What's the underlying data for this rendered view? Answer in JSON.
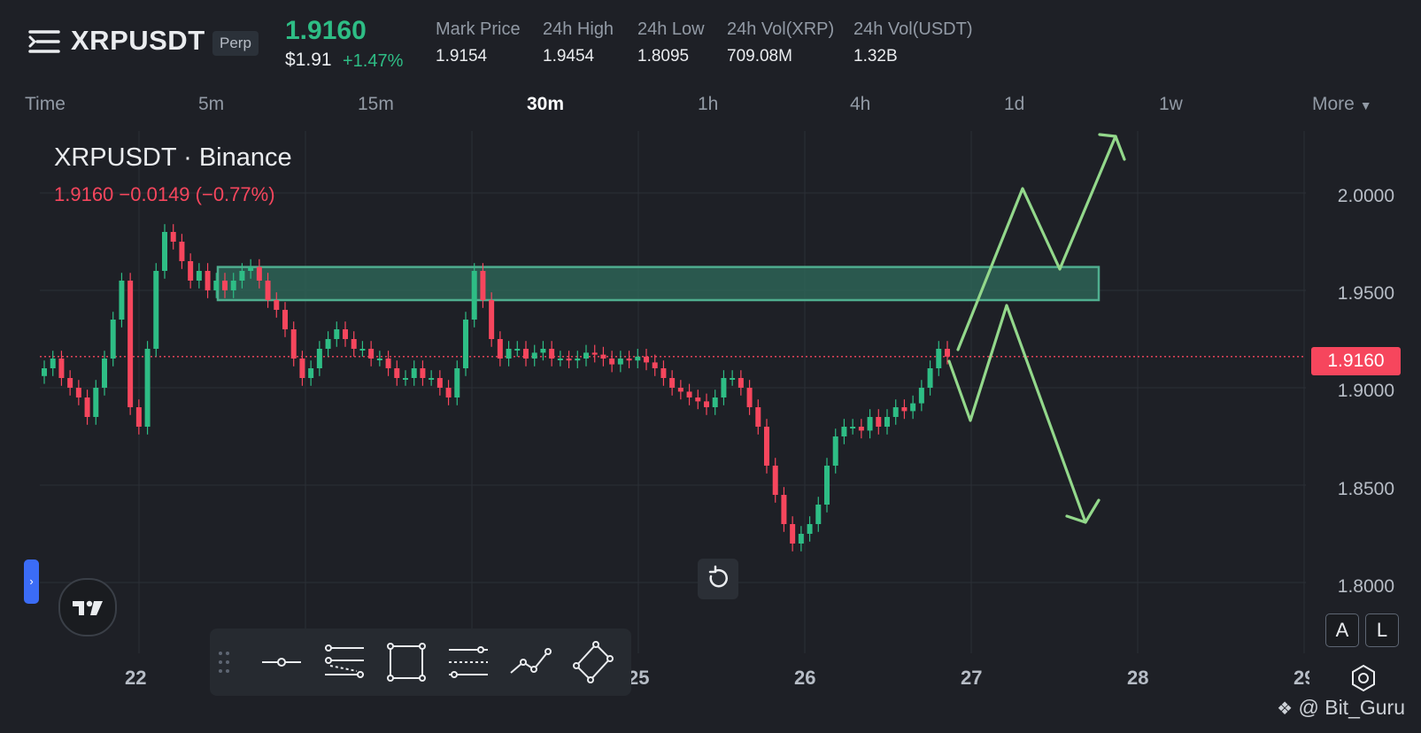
{
  "header": {
    "symbol": "XRPUSDT",
    "badge": "Perp",
    "last_price": "1.9160",
    "usd_price": "$1.91",
    "change_pct": "+1.47%",
    "stats": [
      {
        "label": "Mark Price",
        "value": "1.9154"
      },
      {
        "label": "24h High",
        "value": "1.9454"
      },
      {
        "label": "24h Low",
        "value": "1.8095"
      },
      {
        "label": "24h Vol(XRP)",
        "value": "709.08M"
      },
      {
        "label": "24h Vol(USDT)",
        "value": "1.32B"
      }
    ]
  },
  "timeframes": {
    "items": [
      "Time",
      "5m",
      "15m",
      "30m",
      "1h",
      "4h",
      "1d",
      "1w",
      "More"
    ],
    "active": "30m"
  },
  "chart": {
    "title": "XRPUSDT · Binance",
    "ohlc": "1.9160  −0.0149 (−0.77%)",
    "current_price_tag": "1.9160",
    "colors": {
      "up": "#2ebd85",
      "down": "#f6465d",
      "zone": "#2f6b5c",
      "arrows": "#93d88b"
    }
  },
  "chart_data": {
    "type": "candlestick",
    "title": "XRPUSDT · Binance",
    "y_ticks": [
      "2.0000",
      "1.9500",
      "1.9000",
      "1.8500",
      "1.8000"
    ],
    "x_ticks": [
      "22",
      "25",
      "26",
      "27",
      "28",
      "29"
    ],
    "ylim": [
      1.77,
      2.05
    ],
    "current_price": 1.916,
    "zone": {
      "low": 1.945,
      "high": 1.962
    },
    "series_close": [
      1.91,
      1.915,
      1.905,
      1.9,
      1.895,
      1.885,
      1.9,
      1.915,
      1.935,
      1.955,
      1.89,
      1.88,
      1.92,
      1.96,
      1.98,
      1.975,
      1.965,
      1.955,
      1.96,
      1.95,
      1.955,
      1.95,
      1.955,
      1.96,
      1.962,
      1.955,
      1.945,
      1.94,
      1.93,
      1.915,
      1.905,
      1.91,
      1.92,
      1.925,
      1.93,
      1.925,
      1.92,
      1.92,
      1.915,
      1.915,
      1.91,
      1.905,
      1.905,
      1.91,
      1.905,
      1.905,
      1.9,
      1.895,
      1.91,
      1.935,
      1.96,
      1.945,
      1.925,
      1.915,
      1.92,
      1.92,
      1.915,
      1.918,
      1.92,
      1.915,
      1.915,
      1.914,
      1.915,
      1.918,
      1.917,
      1.915,
      1.912,
      1.915,
      1.914,
      1.916,
      1.913,
      1.91,
      1.905,
      1.9,
      1.898,
      1.895,
      1.893,
      1.89,
      1.895,
      1.905,
      1.905,
      1.9,
      1.89,
      1.88,
      1.86,
      1.845,
      1.83,
      1.82,
      1.825,
      1.83,
      1.84,
      1.86,
      1.875,
      1.88,
      1.88,
      1.878,
      1.885,
      1.88,
      1.885,
      1.89,
      1.888,
      1.892,
      1.9,
      1.91,
      1.92,
      1.916
    ]
  },
  "toolbar": {
    "tools": [
      "horizontal-line-tool",
      "parallel-channel-tool",
      "rectangle-tool",
      "fib-retracement-tool",
      "path-tool",
      "pattern-tool"
    ]
  },
  "modes": {
    "auto": "A",
    "log": "L"
  },
  "watermark": "@ Bit_Guru",
  "side_handle": "›"
}
